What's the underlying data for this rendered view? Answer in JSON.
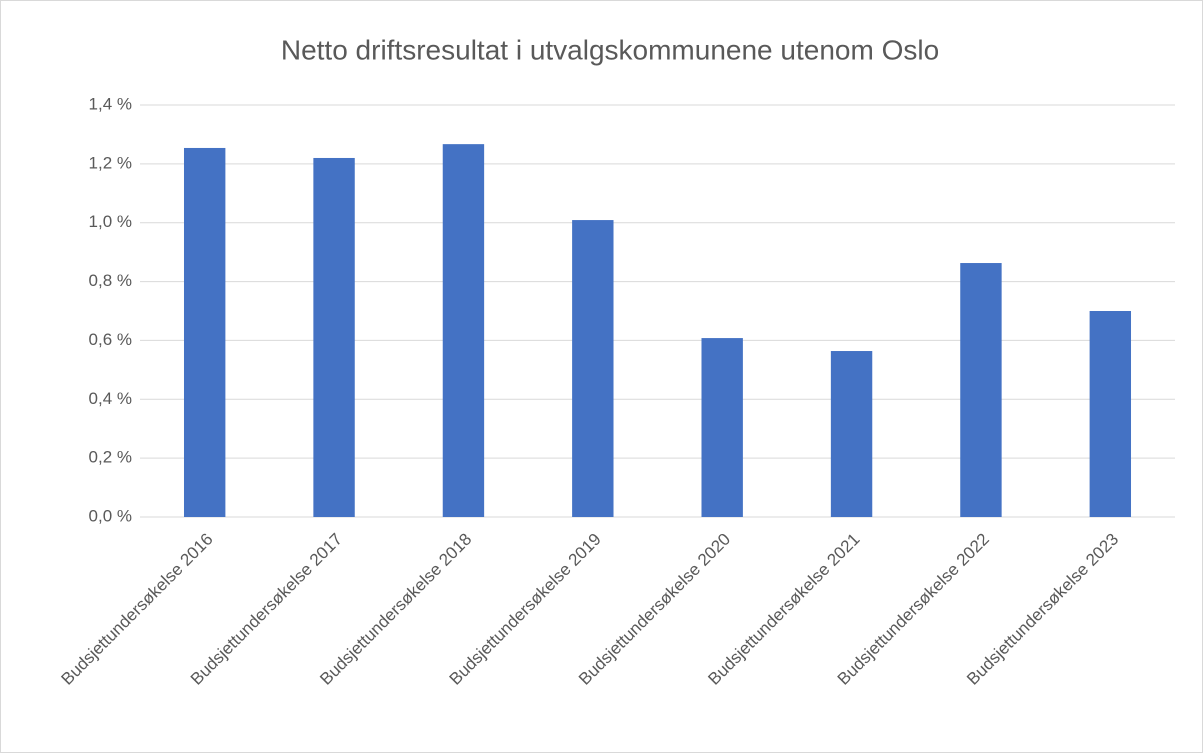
{
  "chart_data": {
    "type": "bar",
    "title": "Netto driftsresultat i utvalgskommunene utenom Oslo",
    "categories": [
      "Budsjettundersøkelse 2016",
      "Budsjettundersøkelse 2017",
      "Budsjettundersøkelse 2018",
      "Budsjettundersøkelse 2019",
      "Budsjettundersøkelse 2020",
      "Budsjettundersøkelse 2021",
      "Budsjettundersøkelse 2022",
      "Budsjettundersøkelse 2023"
    ],
    "values": [
      1.254,
      1.22,
      1.267,
      1.009,
      0.608,
      0.564,
      0.863,
      0.7
    ],
    "color": "#4472c4",
    "ylim": [
      0,
      1.4
    ],
    "yticks": [
      {
        "value": 0,
        "label": "0,0 %"
      },
      {
        "value": 0.2,
        "label": "0,2 %"
      },
      {
        "value": 0.4,
        "label": "0,4 %"
      },
      {
        "value": 0.6,
        "label": "0,6 %"
      },
      {
        "value": 0.8,
        "label": "0,8 %"
      },
      {
        "value": 1.0,
        "label": "1,0 %"
      },
      {
        "value": 1.2,
        "label": "1,2 %"
      },
      {
        "value": 1.4,
        "label": "1,4 %"
      }
    ],
    "grid": true
  }
}
